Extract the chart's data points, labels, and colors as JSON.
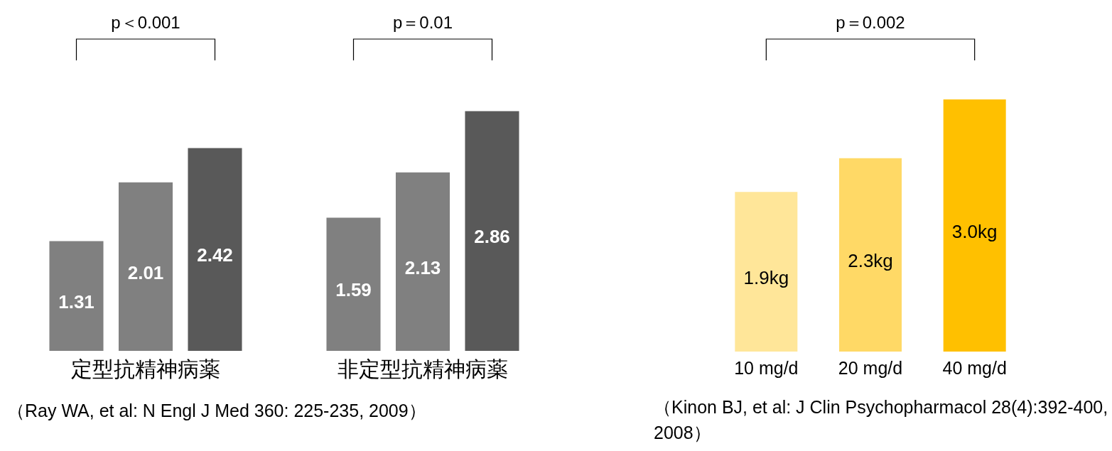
{
  "chart_data": [
    {
      "type": "bar",
      "categories": [
        "定型抗精神病薬",
        "非定型抗精神病薬"
      ],
      "series": [
        {
          "color": "#808080",
          "values": [
            1.31,
            1.59
          ]
        },
        {
          "color": "#808080",
          "values": [
            2.01,
            2.13
          ]
        },
        {
          "color": "#595959",
          "values": [
            2.42,
            2.86
          ]
        }
      ],
      "data_labels": true,
      "legend": false,
      "grid": false,
      "tick_labels": "x",
      "annotations": [
        "p＜0.001",
        "p＝0.01",
        "（Ray WA, et al: N Engl J Med 360: 225-235, 2009）"
      ]
    },
    {
      "type": "bar",
      "categories": [
        "10 mg/d",
        "20 mg/d",
        "40 mg/d"
      ],
      "values": [
        1.9,
        2.3,
        3.0
      ],
      "colors": [
        "#ffe699",
        "#ffd966",
        "#ffc000"
      ],
      "value_labels": [
        "1.9kg",
        "2.3kg",
        "3.0kg"
      ],
      "legend": false,
      "grid": false,
      "tick_labels": "x",
      "annotations": [
        "p＝0.002",
        "（Kinon BJ, et al: J Clin Psychopharmacol 28(4):392-400, 2008）"
      ]
    }
  ]
}
